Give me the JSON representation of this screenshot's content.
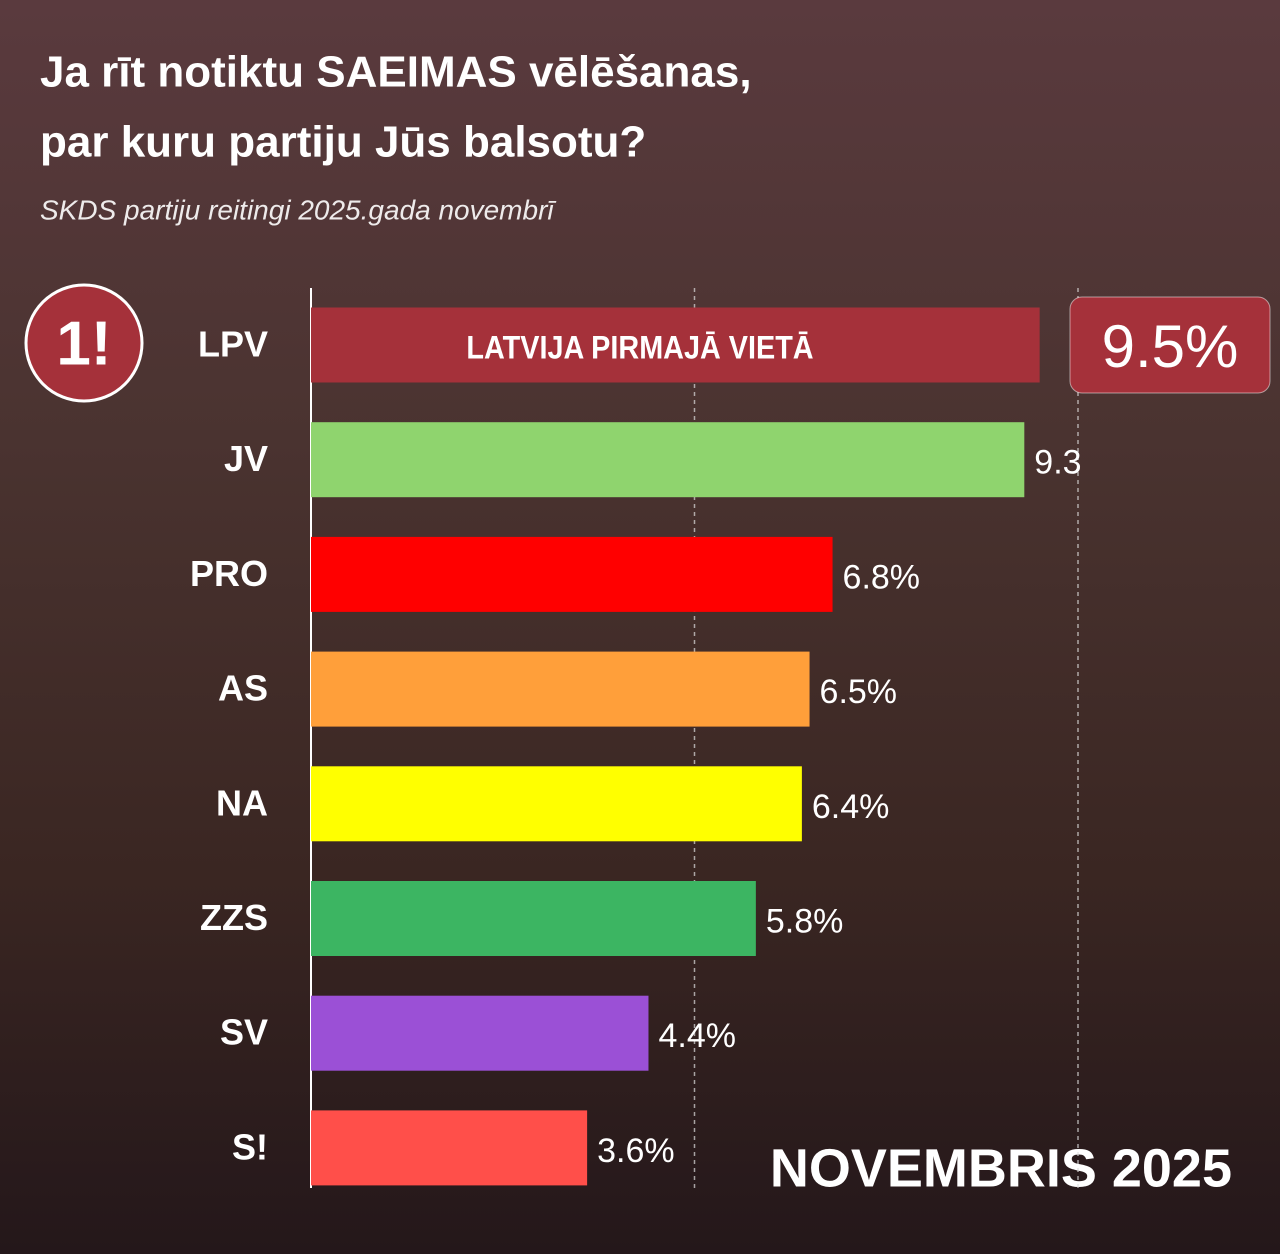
{
  "chart_data": {
    "type": "hbar",
    "title": [
      "Ja rīt notiktu SAEIMAS vēlēšanas,",
      "par kuru partiju Jūs balsotu?"
    ],
    "subtitle": "SKDS partiju reitingi 2025.gada novembrī",
    "logo": "1!",
    "bar_text": "LATVIJA PIRMAJĀ VIETĀ",
    "footer": "NOVEMBRIS 2025",
    "categories": [
      "LPV",
      "JV",
      "PRO",
      "AS",
      "NA",
      "ZZS",
      "SV",
      "S!"
    ],
    "values": [
      9.5,
      9.3,
      6.8,
      6.5,
      6.4,
      5.8,
      4.4,
      3.6
    ],
    "value_labels": [
      "9.5%",
      "9.3",
      "6.8%",
      "6.5%",
      "6.4%",
      "5.8%",
      "4.4%",
      "3.6%"
    ],
    "colors": [
      "#a5313a",
      "#8fd46e",
      "#ff0000",
      "#ff9f3a",
      "#ffff00",
      "#3cb562",
      "#9b50d6",
      "#ff4f4a"
    ],
    "highlight": 0,
    "xlim": [
      0,
      10
    ],
    "xticks": [
      5,
      10
    ],
    "grid": true
  }
}
